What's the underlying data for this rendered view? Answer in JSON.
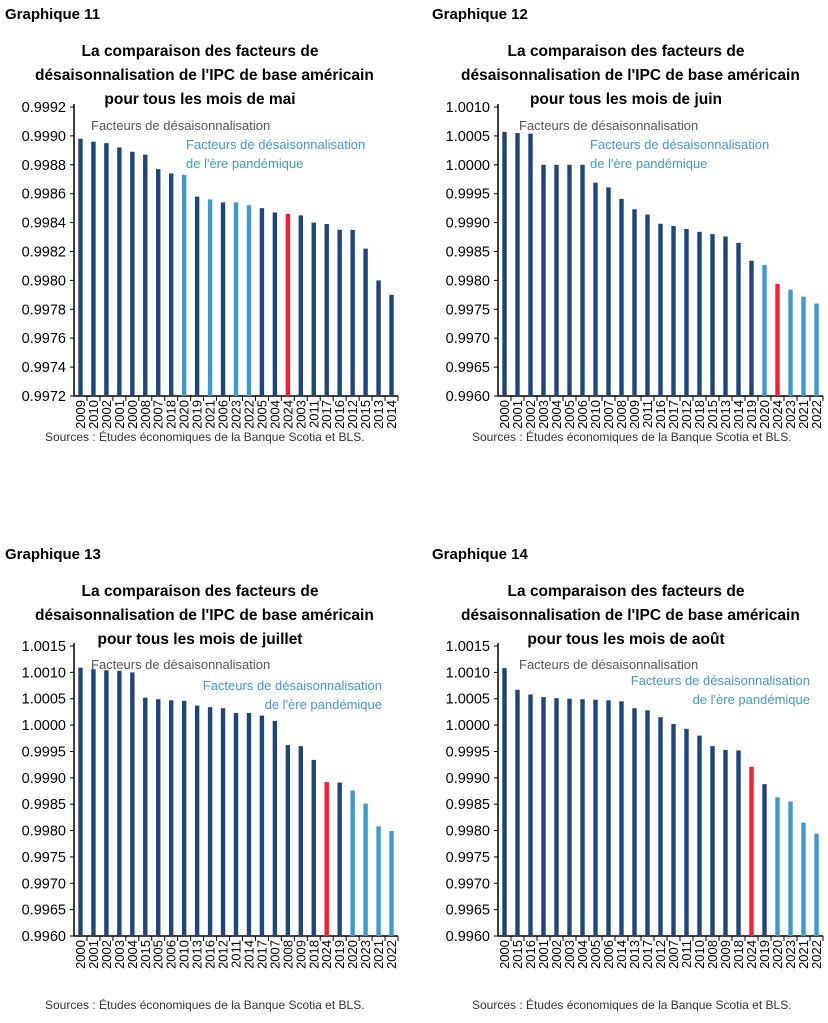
{
  "colors": {
    "regular": "#1c467c",
    "pandemic": "#3d9ad1",
    "current": "#ff1a2e",
    "axis": "#000000"
  },
  "chart_data": [
    {
      "type": "bar",
      "label": "Graphique 11",
      "title": [
        "La comparaison des facteurs de",
        "désaisonnalisation de l'IPC de base américain",
        "pour tous les mois de mai"
      ],
      "legend": {
        "regular": "Facteurs de désaisonnalisation",
        "pandemic": [
          "Facteurs de désaisonnalisation",
          "de l'ère pandémique"
        ]
      },
      "source": "Sources : Études économiques de la Banque Scotia et BLS.",
      "ylim": [
        0.9972,
        0.9992
      ],
      "ystep": 0.0002,
      "grid": false,
      "categories": [
        "2009",
        "2010",
        "2002",
        "2001",
        "2000",
        "2008",
        "2007",
        "2018",
        "2020",
        "2019",
        "2021",
        "2006",
        "2023",
        "2022",
        "2005",
        "2004",
        "2024",
        "2003",
        "2011",
        "2017",
        "2016",
        "2012",
        "2015",
        "2013",
        "2014"
      ],
      "values": [
        0.99898,
        0.99896,
        0.99895,
        0.99892,
        0.99889,
        0.99887,
        0.99877,
        0.99874,
        0.99873,
        0.99858,
        0.99856,
        0.99854,
        0.99854,
        0.99852,
        0.9985,
        0.99847,
        0.99846,
        0.99845,
        0.9984,
        0.99839,
        0.99835,
        0.99835,
        0.99822,
        0.998,
        0.9979
      ],
      "pandemic_years": [
        "2020",
        "2021",
        "2022",
        "2023"
      ],
      "current_year": "2024"
    },
    {
      "type": "bar",
      "label": "Graphique 12",
      "title": [
        "La comparaison des facteurs de",
        "désaisonnalisation de l'IPC de base américain",
        "pour tous les mois de juin"
      ],
      "legend": {
        "regular": "Facteurs de désaisonnalisation",
        "pandemic": [
          "Facteurs de désaisonnalisation",
          "de l'ère pandémique"
        ]
      },
      "source": "Sources : Études économiques de la Banque Scotia et BLS.",
      "ylim": [
        0.996,
        1.001
      ],
      "ystep": 0.0005,
      "grid": false,
      "categories": [
        "2000",
        "2001",
        "2002",
        "2003",
        "2004",
        "2005",
        "2006",
        "2010",
        "2007",
        "2008",
        "2009",
        "2011",
        "2016",
        "2017",
        "2012",
        "2018",
        "2015",
        "2013",
        "2014",
        "2019",
        "2020",
        "2024",
        "2023",
        "2021",
        "2022"
      ],
      "values": [
        1.00057,
        1.00055,
        1.00054,
        1.0,
        1.0,
        1.0,
        1.0,
        0.99969,
        0.99961,
        0.99941,
        0.99923,
        0.99914,
        0.99898,
        0.99894,
        0.99889,
        0.99884,
        0.9988,
        0.99876,
        0.99865,
        0.99834,
        0.99827,
        0.99794,
        0.99784,
        0.99772,
        0.9976
      ],
      "pandemic_years": [
        "2020",
        "2021",
        "2022",
        "2023"
      ],
      "current_year": "2024"
    },
    {
      "type": "bar",
      "label": "Graphique 13",
      "title": [
        "La comparaison des facteurs de",
        "désaisonnalisation de l'IPC de base américain",
        "pour tous les mois de juillet"
      ],
      "legend": {
        "regular": "Facteurs de désaisonnalisation",
        "pandemic": [
          "Facteurs de désaisonnalisation",
          "de l'ère pandémique"
        ]
      },
      "source": "Sources : Études économiques de la Banque Scotia et BLS.",
      "ylim": [
        0.996,
        1.0015
      ],
      "ystep": 0.0005,
      "grid": false,
      "categories": [
        "2000",
        "2001",
        "2002",
        "2003",
        "2004",
        "2015",
        "2005",
        "2006",
        "2010",
        "2013",
        "2016",
        "2012",
        "2011",
        "2014",
        "2017",
        "2007",
        "2008",
        "2009",
        "2018",
        "2024",
        "2019",
        "2020",
        "2023",
        "2021",
        "2022"
      ],
      "values": [
        1.00109,
        1.00106,
        1.00104,
        1.00103,
        1.001,
        1.00052,
        1.00049,
        1.00047,
        1.00046,
        1.00037,
        1.00034,
        1.00032,
        1.00023,
        1.00023,
        1.00018,
        1.00008,
        0.99962,
        0.9996,
        0.99934,
        0.99892,
        0.99891,
        0.99876,
        0.99851,
        0.99808,
        0.99799
      ],
      "pandemic_years": [
        "2020",
        "2021",
        "2022",
        "2023"
      ],
      "current_year": "2024"
    },
    {
      "type": "bar",
      "label": "Graphique 14",
      "title": [
        "La comparaison des facteurs de",
        "désaisonnalisation de l'IPC de base américain",
        "pour tous les mois de août"
      ],
      "legend": {
        "regular": "Facteurs de désaisonnalisation",
        "pandemic": [
          "Facteurs de désaisonnalisation",
          "de l'ère pandémique"
        ]
      },
      "source": "Sources : Études économiques de la Banque Scotia et BLS.",
      "ylim": [
        0.996,
        1.0015
      ],
      "ystep": 0.0005,
      "grid": false,
      "categories": [
        "2000",
        "2015",
        "2016",
        "2001",
        "2002",
        "2003",
        "2004",
        "2005",
        "2006",
        "2014",
        "2013",
        "2017",
        "2012",
        "2007",
        "2011",
        "2010",
        "2008",
        "2009",
        "2018",
        "2024",
        "2019",
        "2020",
        "2023",
        "2021",
        "2022"
      ],
      "values": [
        1.00108,
        1.00067,
        1.00058,
        1.00053,
        1.00051,
        1.0005,
        1.00049,
        1.00048,
        1.00047,
        1.00045,
        1.00032,
        1.00028,
        1.00015,
        1.00002,
        0.99993,
        0.9998,
        0.9996,
        0.99953,
        0.99952,
        0.99921,
        0.99888,
        0.99863,
        0.99855,
        0.99815,
        0.99794
      ],
      "pandemic_years": [
        "2020",
        "2021",
        "2022",
        "2023"
      ],
      "current_year": "2024"
    }
  ]
}
